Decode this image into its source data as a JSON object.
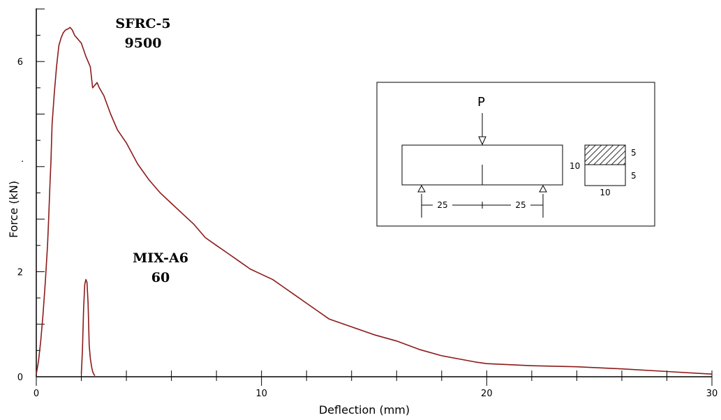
{
  "chart_data": {
    "type": "line",
    "title": "",
    "xlabel": "Deflection (mm)",
    "ylabel": "Force (kN)",
    "xlim": [
      0,
      30
    ],
    "ylim": [
      0,
      7
    ],
    "x_ticks": [
      0,
      10,
      20,
      30
    ],
    "y_ticks": [
      0,
      2,
      6
    ],
    "stray_label": ".",
    "colors": {
      "series": "#8b1a1a",
      "axis": "#000000"
    },
    "series": [
      {
        "label_lines": [
          "SFRC-5",
          "9500"
        ],
        "x": [
          0,
          0.1,
          0.2,
          0.3,
          0.4,
          0.5,
          0.55,
          0.6,
          0.65,
          0.7,
          0.8,
          0.9,
          1.0,
          1.1,
          1.2,
          1.3,
          1.4,
          1.5,
          1.6,
          1.7,
          1.8,
          1.9,
          2.0,
          2.2,
          2.4,
          2.5,
          2.6,
          2.7,
          2.8,
          3.0,
          3.3,
          3.6,
          4.0,
          4.5,
          5.0,
          5.5,
          6.0,
          6.5,
          7.0,
          7.5,
          8.0,
          8.5,
          9.0,
          9.5,
          10.0,
          10.5,
          11.0,
          11.5,
          12.0,
          12.5,
          13.0,
          14.0,
          15.0,
          16.0,
          17.0,
          18.0,
          19.0,
          19.5,
          20.0,
          21.0,
          22.0,
          24.0,
          26.0,
          28.0,
          30.0
        ],
        "values": [
          0.05,
          0.3,
          0.7,
          1.2,
          1.8,
          2.5,
          3.0,
          3.6,
          4.1,
          4.8,
          5.4,
          5.9,
          6.3,
          6.45,
          6.55,
          6.6,
          6.62,
          6.65,
          6.6,
          6.5,
          6.45,
          6.4,
          6.35,
          6.1,
          5.9,
          5.5,
          5.55,
          5.6,
          5.5,
          5.35,
          5.0,
          4.7,
          4.45,
          4.05,
          3.75,
          3.5,
          3.3,
          3.1,
          2.9,
          2.65,
          2.5,
          2.35,
          2.2,
          2.05,
          1.95,
          1.85,
          1.7,
          1.55,
          1.4,
          1.25,
          1.1,
          0.95,
          0.8,
          0.68,
          0.52,
          0.4,
          0.32,
          0.28,
          0.25,
          0.23,
          0.21,
          0.19,
          0.15,
          0.1,
          0.05
        ]
      },
      {
        "label_lines": [
          "MIX-A6",
          "60"
        ],
        "x": [
          2.0,
          2.05,
          2.1,
          2.15,
          2.2,
          2.25,
          2.3,
          2.35,
          2.4,
          2.45,
          2.5,
          2.55,
          2.6
        ],
        "values": [
          0.05,
          0.5,
          1.3,
          1.75,
          1.85,
          1.8,
          1.4,
          0.6,
          0.35,
          0.2,
          0.1,
          0.05,
          0.02
        ]
      }
    ],
    "inset": {
      "load_label": "P",
      "span_labels": [
        "25",
        "25"
      ],
      "height_label": "10",
      "section_layer_labels": [
        "5",
        "5"
      ],
      "section_width_label": "10"
    }
  }
}
